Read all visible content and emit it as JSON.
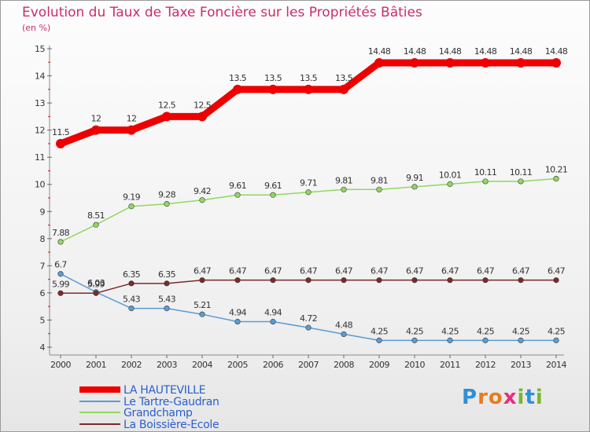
{
  "title": "Evolution du Taux de Taxe Foncière sur les Propriétés Bâties",
  "subtitle": "(en %)",
  "chart_data": {
    "type": "line",
    "categories": [
      "2000",
      "2001",
      "2002",
      "2003",
      "2004",
      "2005",
      "2006",
      "2007",
      "2008",
      "2009",
      "2010",
      "2011",
      "2012",
      "2013",
      "2014"
    ],
    "ylim": [
      4,
      15
    ],
    "yticks": [
      "4",
      "5",
      "6",
      "7",
      "8",
      "9",
      "10",
      "11",
      "12",
      "13",
      "14",
      "15"
    ],
    "grid": false,
    "series": [
      {
        "name": "LA HAUTEVILLE",
        "color": "#ee0000",
        "values": [
          11.5,
          12,
          12,
          12.5,
          12.5,
          13.5,
          13.5,
          13.5,
          13.5,
          14.48,
          14.48,
          14.48,
          14.48,
          14.48,
          14.48
        ],
        "labels": [
          "11.5",
          "12",
          "12",
          "12.5",
          "12.5",
          "13.5",
          "13.5",
          "13.5",
          "13.5",
          "14.48",
          "14.48",
          "14.48",
          "14.48",
          "14.48",
          "14.48"
        ]
      },
      {
        "name": "Le Tartre-Gaudran",
        "color": "#5b9bd5",
        "values": [
          6.7,
          6.03,
          5.43,
          5.43,
          5.21,
          4.94,
          4.94,
          4.72,
          4.48,
          4.25,
          4.25,
          4.25,
          4.25,
          4.25,
          4.25
        ],
        "labels": [
          "6.7",
          "6.03",
          "5.43",
          "5.43",
          "5.21",
          "4.94",
          "4.94",
          "4.72",
          "4.48",
          "4.25",
          "4.25",
          "4.25",
          "4.25",
          "4.25",
          "4.25"
        ]
      },
      {
        "name": "Grandchamp",
        "color": "#90d860",
        "values": [
          7.88,
          8.51,
          9.19,
          9.28,
          9.42,
          9.61,
          9.61,
          9.71,
          9.81,
          9.81,
          9.91,
          10.01,
          10.11,
          10.11,
          10.21
        ],
        "labels": [
          "7.88",
          "8.51",
          "9.19",
          "9.28",
          "9.42",
          "9.61",
          "9.61",
          "9.71",
          "9.81",
          "9.81",
          "9.91",
          "10.01",
          "10.11",
          "10.11",
          "10.21"
        ]
      },
      {
        "name": "La Boissière-Ecole",
        "color": "#7a2a2a",
        "values": [
          5.99,
          5.99,
          6.35,
          6.35,
          6.47,
          6.47,
          6.47,
          6.47,
          6.47,
          6.47,
          6.47,
          6.47,
          6.47,
          6.47,
          6.47
        ],
        "labels": [
          "5.99",
          "5.99",
          "6.35",
          "6.35",
          "6.47",
          "6.47",
          "6.47",
          "6.47",
          "6.47",
          "6.47",
          "6.47",
          "6.47",
          "6.47",
          "6.47",
          "6.47"
        ]
      }
    ]
  },
  "legend": [
    {
      "label": "LA HAUTEVILLE",
      "color": "#ee0000"
    },
    {
      "label": "Le Tartre-Gaudran",
      "color": "#5b9bd5"
    },
    {
      "label": "Grandchamp",
      "color": "#90d860"
    },
    {
      "label": "La Boissière-Ecole",
      "color": "#7a2a2a"
    }
  ],
  "logo": {
    "text": "Proxiti",
    "letters": [
      "P",
      "r",
      "o",
      "x",
      "i",
      "t",
      "i"
    ],
    "colors": [
      "#2f8fd6",
      "#e87b1e",
      "#e87b1e",
      "#ec2c7c",
      "#79b72f",
      "#2f8fd6",
      "#79b72f"
    ]
  }
}
